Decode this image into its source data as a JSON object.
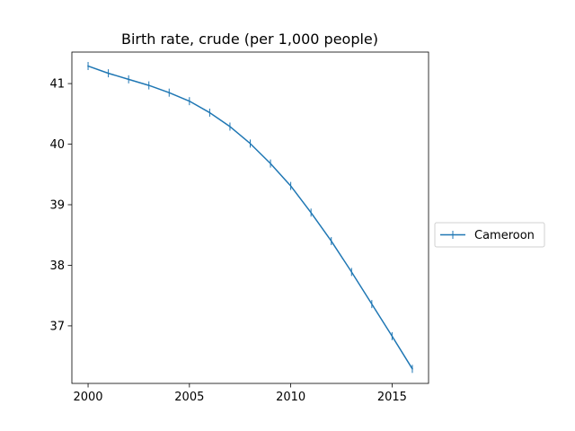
{
  "chart_data": {
    "type": "line",
    "title": "Birth rate, crude (per 1,000 people)",
    "xlabel": "",
    "ylabel": "",
    "xlim": [
      1999.2,
      2016.8
    ],
    "ylim": [
      36.05,
      41.52
    ],
    "xticks": [
      2000,
      2005,
      2010,
      2015
    ],
    "yticks": [
      37,
      38,
      39,
      40,
      41
    ],
    "grid": false,
    "legend_position": "right",
    "series": [
      {
        "name": "Cameroon",
        "color": "#1f77b4",
        "marker": "vertical-line",
        "x": [
          2000,
          2001,
          2002,
          2003,
          2004,
          2005,
          2006,
          2007,
          2008,
          2009,
          2010,
          2011,
          2012,
          2013,
          2014,
          2015,
          2016
        ],
        "values": [
          41.29,
          41.17,
          41.07,
          40.97,
          40.85,
          40.71,
          40.52,
          40.29,
          40.01,
          39.68,
          39.31,
          38.87,
          38.4,
          37.89,
          37.36,
          36.83,
          36.29
        ]
      }
    ]
  }
}
